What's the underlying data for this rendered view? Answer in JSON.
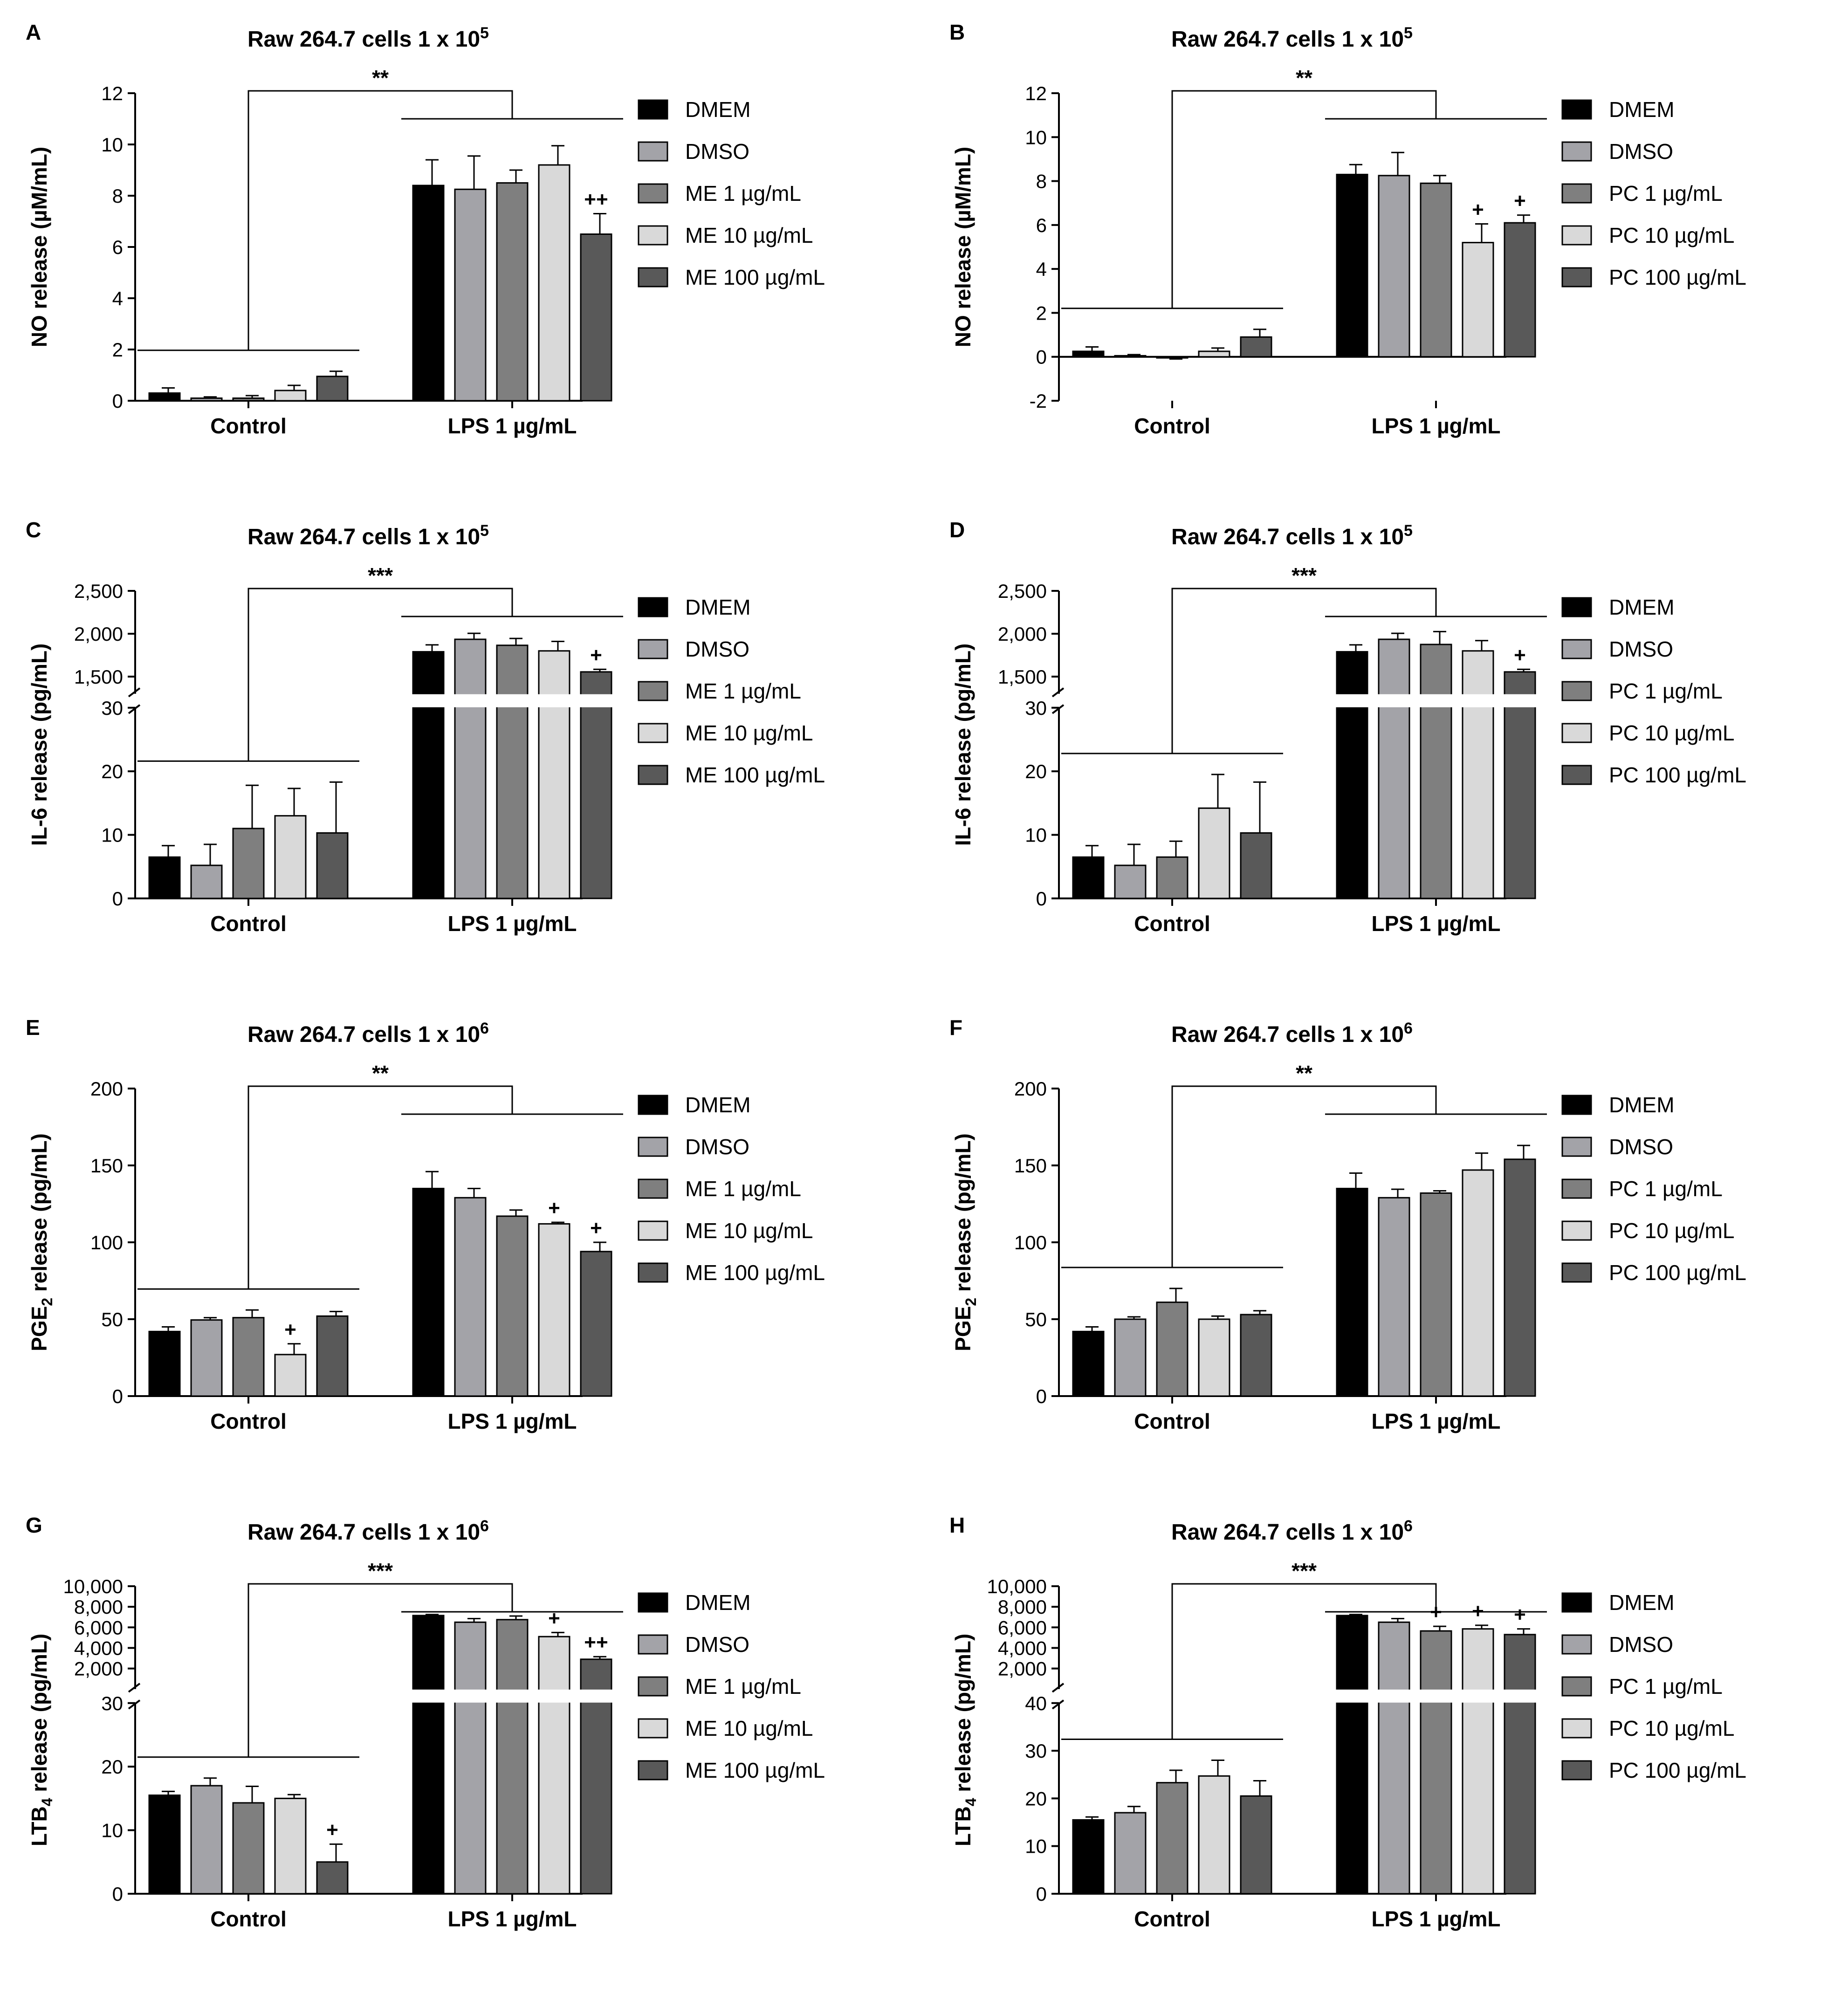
{
  "series_colors": [
    "#000000",
    "#a3a3a8",
    "#7f7f7f",
    "#d9d9d9",
    "#595959"
  ],
  "chart_data": [
    {
      "panel_letter": "A",
      "type": "bar",
      "title": "Raw 264.7 cells 1 x 10",
      "title_sup": "5",
      "ylabel": "NO release (µM/mL)",
      "ylabel_sub": "",
      "groups": [
        "Control",
        "LPS 1 µg/mL"
      ],
      "legend": [
        "DMEM",
        "DMSO",
        "ME 1 µg/mL",
        "ME 10 µg/mL",
        "ME 100 µg/mL"
      ],
      "ylim": [
        0,
        12
      ],
      "yticks": [
        0,
        2,
        4,
        6,
        8,
        10,
        12
      ],
      "values": [
        [
          0.3,
          0.1,
          0.1,
          0.4,
          0.95
        ],
        [
          8.4,
          8.25,
          8.5,
          9.2,
          6.5
        ]
      ],
      "errors": [
        [
          0.2,
          0.05,
          0.1,
          0.2,
          0.2
        ],
        [
          1.0,
          1.3,
          0.5,
          0.75,
          0.8
        ]
      ],
      "marks": [
        [
          "",
          "",
          "",
          "",
          ""
        ],
        [
          "",
          "",
          "",
          "",
          "++"
        ]
      ],
      "significance": "**"
    },
    {
      "panel_letter": "B",
      "type": "bar",
      "title": "Raw 264.7 cells 1 x 10",
      "title_sup": "5",
      "ylabel": "NO release (µM/mL)",
      "ylabel_sub": "",
      "groups": [
        "Control",
        "LPS 1 µg/mL"
      ],
      "legend": [
        "DMEM",
        "DMSO",
        "PC 1 µg/mL",
        "PC 10 µg/mL",
        "PC 100 µg/mL"
      ],
      "ylim": [
        -2,
        12
      ],
      "yticks": [
        -2,
        0,
        2,
        4,
        6,
        8,
        10,
        12
      ],
      "values": [
        [
          0.25,
          0.05,
          -0.05,
          0.25,
          0.9
        ],
        [
          8.3,
          8.25,
          7.9,
          5.2,
          6.1
        ]
      ],
      "errors": [
        [
          0.2,
          0.05,
          0.05,
          0.15,
          0.35
        ],
        [
          0.45,
          1.05,
          0.35,
          0.85,
          0.35
        ]
      ],
      "marks": [
        [
          "",
          "",
          "",
          "",
          ""
        ],
        [
          "",
          "",
          "",
          "+",
          "+"
        ]
      ],
      "significance": "**"
    },
    {
      "panel_letter": "C",
      "type": "bar",
      "title": "Raw 264.7 cells 1 x 10",
      "title_sup": "5",
      "ylabel": "IL-6 release (pg/mL)",
      "ylabel_sub": "",
      "groups": [
        "Control",
        "LPS 1 µg/mL"
      ],
      "legend": [
        "DMEM",
        "DMSO",
        "ME 1 µg/mL",
        "ME 10 µg/mL",
        "ME 100 µg/mL"
      ],
      "broken_axis": {
        "lower": [
          0,
          30
        ],
        "upper": [
          1300,
          2500
        ]
      },
      "yticks_lower": [
        0,
        10,
        20,
        30
      ],
      "yticks_upper": [
        1500,
        2000,
        2500
      ],
      "ytick_labels_upper": [
        "1,500",
        "2,000",
        "2,500"
      ],
      "values": [
        [
          6.5,
          5.2,
          11,
          13,
          10.3
        ],
        [
          1790,
          1935,
          1865,
          1800,
          1555
        ]
      ],
      "errors": [
        [
          1.8,
          3.3,
          6.8,
          4.3,
          8
        ],
        [
          80,
          70,
          80,
          110,
          30
        ]
      ],
      "marks": [
        [
          "",
          "",
          "",
          "",
          ""
        ],
        [
          "",
          "",
          "",
          "",
          "+"
        ]
      ],
      "significance": "***"
    },
    {
      "panel_letter": "D",
      "type": "bar",
      "title": "Raw 264.7 cells 1 x 10",
      "title_sup": "5",
      "ylabel": "IL-6 release (pg/mL)",
      "ylabel_sub": "",
      "groups": [
        "Control",
        "LPS 1 µg/mL"
      ],
      "legend": [
        "DMEM",
        "DMSO",
        "PC 1 µg/mL",
        "PC 10 µg/mL",
        "PC 100 µg/mL"
      ],
      "broken_axis": {
        "lower": [
          0,
          30
        ],
        "upper": [
          1300,
          2500
        ]
      },
      "yticks_lower": [
        0,
        10,
        20,
        30
      ],
      "yticks_upper": [
        1500,
        2000,
        2500
      ],
      "ytick_labels_upper": [
        "1,500",
        "2,000",
        "2,500"
      ],
      "values": [
        [
          6.5,
          5.2,
          6.5,
          14.2,
          10.3
        ],
        [
          1790,
          1935,
          1875,
          1800,
          1555
        ]
      ],
      "errors": [
        [
          1.8,
          3.3,
          2.5,
          5.3,
          8
        ],
        [
          80,
          70,
          150,
          120,
          30
        ]
      ],
      "marks": [
        [
          "",
          "",
          "",
          "",
          ""
        ],
        [
          "",
          "",
          "",
          "",
          "+"
        ]
      ],
      "significance": "***"
    },
    {
      "panel_letter": "E",
      "type": "bar",
      "title": "Raw 264.7 cells 1 x 10",
      "title_sup": "6",
      "ylabel": "PGE",
      "ylabel_sub": "2",
      "ylabel_rest": " release (pg/mL)",
      "groups": [
        "Control",
        "LPS 1 µg/mL"
      ],
      "legend": [
        "DMEM",
        "DMSO",
        "ME 1 µg/mL",
        "ME 10 µg/mL",
        "ME 100 µg/mL"
      ],
      "ylim": [
        0,
        200
      ],
      "yticks": [
        0,
        50,
        100,
        150,
        200
      ],
      "values": [
        [
          42,
          49.5,
          51,
          27,
          52
        ],
        [
          135,
          129,
          117,
          112,
          94
        ]
      ],
      "errors": [
        [
          3,
          1.5,
          5,
          7,
          3
        ],
        [
          11,
          6,
          4,
          1,
          6
        ]
      ],
      "marks": [
        [
          "",
          "",
          "",
          "+",
          ""
        ],
        [
          "",
          "",
          "",
          "+",
          "+"
        ]
      ],
      "significance": "**"
    },
    {
      "panel_letter": "F",
      "type": "bar",
      "title": "Raw 264.7 cells 1 x 10",
      "title_sup": "6",
      "ylabel": "PGE",
      "ylabel_sub": "2",
      "ylabel_rest": " release (pg/mL)",
      "groups": [
        "Control",
        "LPS 1 µg/mL"
      ],
      "legend": [
        "DMEM",
        "DMSO",
        "PC 1 µg/mL",
        "PC 10 µg/mL",
        "PC 100 µg/mL"
      ],
      "ylim": [
        0,
        200
      ],
      "yticks": [
        0,
        50,
        100,
        150,
        200
      ],
      "values": [
        [
          42,
          50,
          61,
          50,
          53
        ],
        [
          135,
          129,
          132,
          147,
          154
        ]
      ],
      "errors": [
        [
          3,
          1.5,
          9,
          2,
          2.5
        ],
        [
          10,
          5.5,
          1.5,
          11,
          9
        ]
      ],
      "marks": [
        [
          "",
          "",
          "",
          "",
          ""
        ],
        [
          "",
          "",
          "",
          "",
          ""
        ]
      ],
      "significance": "**"
    },
    {
      "panel_letter": "G",
      "type": "bar",
      "title": "Raw 264.7 cells 1 x 10",
      "title_sup": "6",
      "ylabel": "LTB",
      "ylabel_sub": "4",
      "ylabel_rest": " release (pg/mL)",
      "groups": [
        "Control",
        "LPS 1 µg/mL"
      ],
      "legend": [
        "DMEM",
        "DMSO",
        "ME 1 µg/mL",
        "ME 10 µg/mL",
        "ME 100 µg/mL"
      ],
      "broken_axis": {
        "lower": [
          0,
          30
        ],
        "upper": [
          0,
          10000
        ]
      },
      "yticks_lower": [
        0,
        10,
        20,
        30
      ],
      "yticks_upper": [
        2000,
        4000,
        6000,
        8000,
        10000
      ],
      "ytick_labels_upper": [
        "2,000",
        "4,000",
        "6,000",
        "8,000",
        "10,000"
      ],
      "values": [
        [
          15.5,
          17,
          14.3,
          15,
          5
        ],
        [
          7150,
          6500,
          6750,
          5100,
          2900
        ]
      ],
      "errors": [
        [
          0.6,
          1.2,
          2.6,
          0.6,
          2.8
        ],
        [
          100,
          350,
          350,
          400,
          250
        ]
      ],
      "marks": [
        [
          "",
          "",
          "",
          "",
          "+"
        ],
        [
          "",
          "",
          "",
          "+",
          "++"
        ]
      ],
      "significance": "***"
    },
    {
      "panel_letter": "H",
      "type": "bar",
      "title": "Raw 264.7 cells 1 x 10",
      "title_sup": "6",
      "ylabel": "LTB",
      "ylabel_sub": "4",
      "ylabel_rest": " release (pg/mL)",
      "groups": [
        "Control",
        "LPS 1 µg/mL"
      ],
      "legend": [
        "DMEM",
        "DMSO",
        "PC 1 µg/mL",
        "PC 10 µg/mL",
        "PC 100 µg/mL"
      ],
      "broken_axis": {
        "lower": [
          0,
          40
        ],
        "upper": [
          0,
          10000
        ]
      },
      "yticks_lower": [
        0,
        10,
        20,
        30,
        40
      ],
      "yticks_upper": [
        2000,
        4000,
        6000,
        8000,
        10000
      ],
      "ytick_labels_upper": [
        "2,000",
        "4,000",
        "6,000",
        "8,000",
        "10,000"
      ],
      "values": [
        [
          15.5,
          17,
          23.3,
          24.7,
          20.5
        ],
        [
          7150,
          6500,
          5650,
          5850,
          5300
        ]
      ],
      "errors": [
        [
          0.6,
          1.3,
          2.6,
          3.3,
          3.2
        ],
        [
          100,
          350,
          450,
          350,
          550
        ]
      ],
      "marks": [
        [
          "",
          "",
          "",
          "",
          ""
        ],
        [
          "",
          "",
          "+",
          "+",
          "+"
        ]
      ],
      "significance": "***"
    }
  ]
}
